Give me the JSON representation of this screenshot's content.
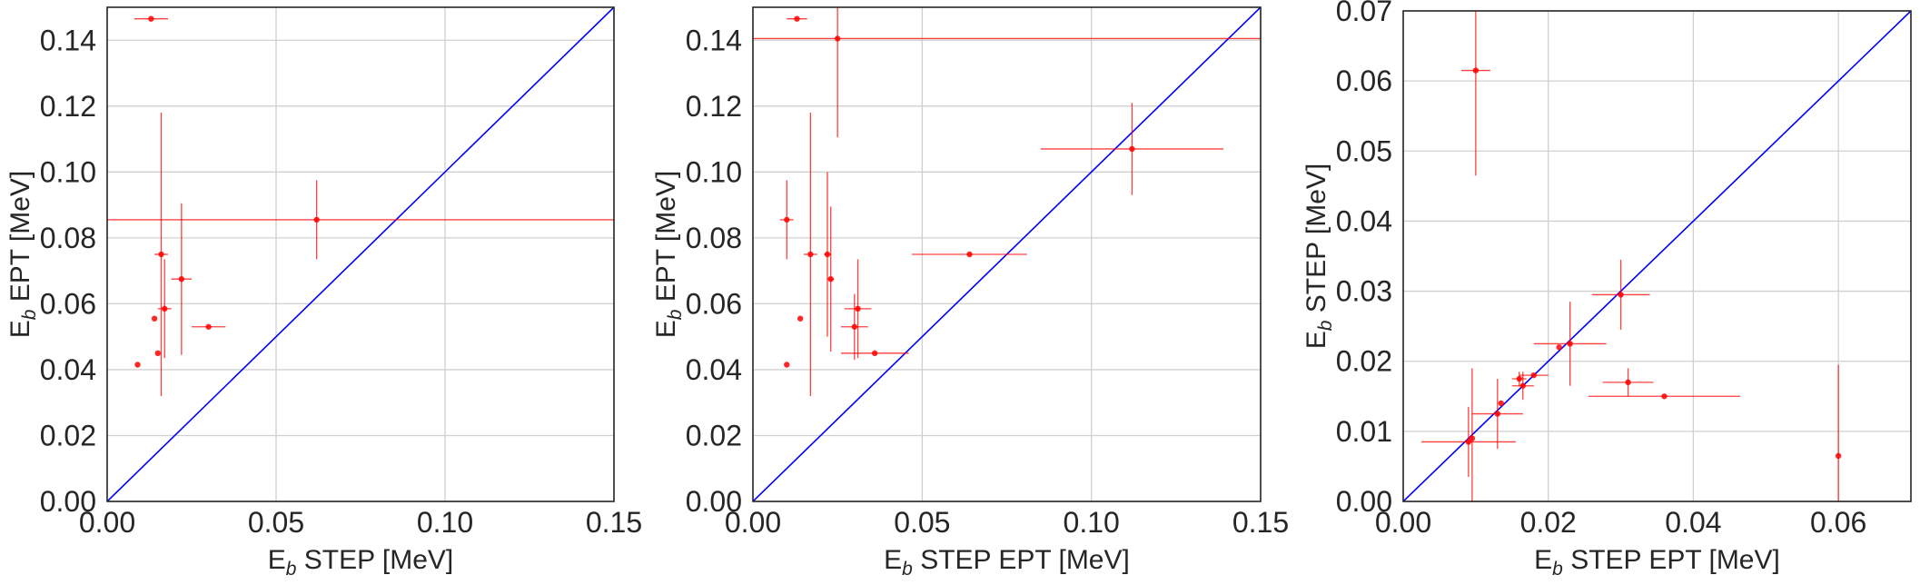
{
  "colors": {
    "points": "#ff0000",
    "diagonal": "#0000ff",
    "grid": "#d0d0d0",
    "frame": "#262626"
  },
  "chart_data": [
    {
      "type": "scatter",
      "xlabel_main": "E",
      "xlabel_sub": "b",
      "xlabel_rest": " STEP [MeV]",
      "ylabel_main": "E",
      "ylabel_sub": "b",
      "ylabel_rest": " EPT [MeV]",
      "xlim": [
        0,
        0.15
      ],
      "ylim": [
        0,
        0.15
      ],
      "xticks": [
        "0.00",
        "0.05",
        "0.10",
        "0.15"
      ],
      "yticks": [
        "0.00",
        "0.02",
        "0.04",
        "0.06",
        "0.08",
        "0.10",
        "0.12",
        "0.14"
      ],
      "grid": true,
      "diagonal": true,
      "points": [
        {
          "x": 0.013,
          "y": 0.1465,
          "xerr": 0.005,
          "yerr": 0
        },
        {
          "x": 0.009,
          "y": 0.0415,
          "xerr": 0,
          "yerr": 0
        },
        {
          "x": 0.014,
          "y": 0.0555,
          "xerr": 0,
          "yerr": 0
        },
        {
          "x": 0.015,
          "y": 0.045,
          "xerr": 0,
          "yerr": 0
        },
        {
          "x": 0.016,
          "y": 0.075,
          "xerr": 0.002,
          "yerr": 0.043
        },
        {
          "x": 0.017,
          "y": 0.0585,
          "xerr": 0.002,
          "yerr": 0.015
        },
        {
          "x": 0.022,
          "y": 0.0675,
          "xerr": 0.003,
          "yerr": 0.023
        },
        {
          "x": 0.03,
          "y": 0.053,
          "xerr": 0.005,
          "yerr": 0
        },
        {
          "x": 0.062,
          "y": 0.0855,
          "xerr": 0.09,
          "yerr": 0.012
        }
      ]
    },
    {
      "type": "scatter",
      "xlabel_main": "E",
      "xlabel_sub": "b",
      "xlabel_rest": " STEP EPT [MeV]",
      "ylabel_main": "E",
      "ylabel_sub": "b",
      "ylabel_rest": " EPT [MeV]",
      "xlim": [
        0,
        0.15
      ],
      "ylim": [
        0,
        0.15
      ],
      "xticks": [
        "0.00",
        "0.05",
        "0.10",
        "0.15"
      ],
      "yticks": [
        "0.00",
        "0.02",
        "0.04",
        "0.06",
        "0.08",
        "0.10",
        "0.12",
        "0.14"
      ],
      "grid": true,
      "diagonal": true,
      "points": [
        {
          "x": 0.013,
          "y": 0.1465,
          "xerr": 0.003,
          "yerr": 0
        },
        {
          "x": 0.025,
          "y": 0.1405,
          "xerr": 0.15,
          "yerr": 0.03
        },
        {
          "x": 0.01,
          "y": 0.0855,
          "xerr": 0.002,
          "yerr": 0.012
        },
        {
          "x": 0.017,
          "y": 0.075,
          "xerr": 0.002,
          "yerr": 0.043
        },
        {
          "x": 0.022,
          "y": 0.075,
          "xerr": 0.001,
          "yerr": 0.025
        },
        {
          "x": 0.023,
          "y": 0.0675,
          "xerr": 0.001,
          "yerr": 0.022
        },
        {
          "x": 0.014,
          "y": 0.0555,
          "xerr": 0,
          "yerr": 0
        },
        {
          "x": 0.01,
          "y": 0.0415,
          "xerr": 0,
          "yerr": 0
        },
        {
          "x": 0.031,
          "y": 0.0585,
          "xerr": 0.004,
          "yerr": 0.015
        },
        {
          "x": 0.03,
          "y": 0.053,
          "xerr": 0.004,
          "yerr": 0.01
        },
        {
          "x": 0.036,
          "y": 0.045,
          "xerr": 0.01,
          "yerr": 0
        },
        {
          "x": 0.064,
          "y": 0.075,
          "xerr": 0.017,
          "yerr": 0
        },
        {
          "x": 0.112,
          "y": 0.107,
          "xerr": 0.027,
          "yerr": 0.014
        }
      ]
    },
    {
      "type": "scatter",
      "xlabel_main": "E",
      "xlabel_sub": "b",
      "xlabel_rest": " STEP EPT [MeV]",
      "ylabel_main": "E",
      "ylabel_sub": "b",
      "ylabel_rest": " STEP [MeV]",
      "xlim": [
        0,
        0.07
      ],
      "ylim": [
        0,
        0.07
      ],
      "xticks": [
        "0.00",
        "0.02",
        "0.04",
        "0.06"
      ],
      "yticks": [
        "0.00",
        "0.01",
        "0.02",
        "0.03",
        "0.04",
        "0.05",
        "0.06",
        "0.07"
      ],
      "grid": true,
      "diagonal": true,
      "points": [
        {
          "x": 0.01,
          "y": 0.0615,
          "xerr": 0.002,
          "yerr": 0.015
        },
        {
          "x": 0.009,
          "y": 0.0085,
          "xerr": 0.0065,
          "yerr": 0.005
        },
        {
          "x": 0.0095,
          "y": 0.009,
          "xerr": 0,
          "yerr": 0.01
        },
        {
          "x": 0.013,
          "y": 0.0125,
          "xerr": 0.0035,
          "yerr": 0.005
        },
        {
          "x": 0.0135,
          "y": 0.014,
          "xerr": 0,
          "yerr": 0
        },
        {
          "x": 0.016,
          "y": 0.0175,
          "xerr": 0.001,
          "yerr": 0.001
        },
        {
          "x": 0.0165,
          "y": 0.0165,
          "xerr": 0.0015,
          "yerr": 0.002
        },
        {
          "x": 0.018,
          "y": 0.018,
          "xerr": 0.002,
          "yerr": 0
        },
        {
          "x": 0.0215,
          "y": 0.022,
          "xerr": 0,
          "yerr": 0
        },
        {
          "x": 0.023,
          "y": 0.0225,
          "xerr": 0.005,
          "yerr": 0.006
        },
        {
          "x": 0.03,
          "y": 0.0295,
          "xerr": 0.004,
          "yerr": 0.005
        },
        {
          "x": 0.031,
          "y": 0.017,
          "xerr": 0.0035,
          "yerr": 0.002
        },
        {
          "x": 0.036,
          "y": 0.015,
          "xerr": 0.0105,
          "yerr": 0
        },
        {
          "x": 0.06,
          "y": 0.0065,
          "xerr": 0,
          "yerr": 0.013
        }
      ]
    }
  ]
}
